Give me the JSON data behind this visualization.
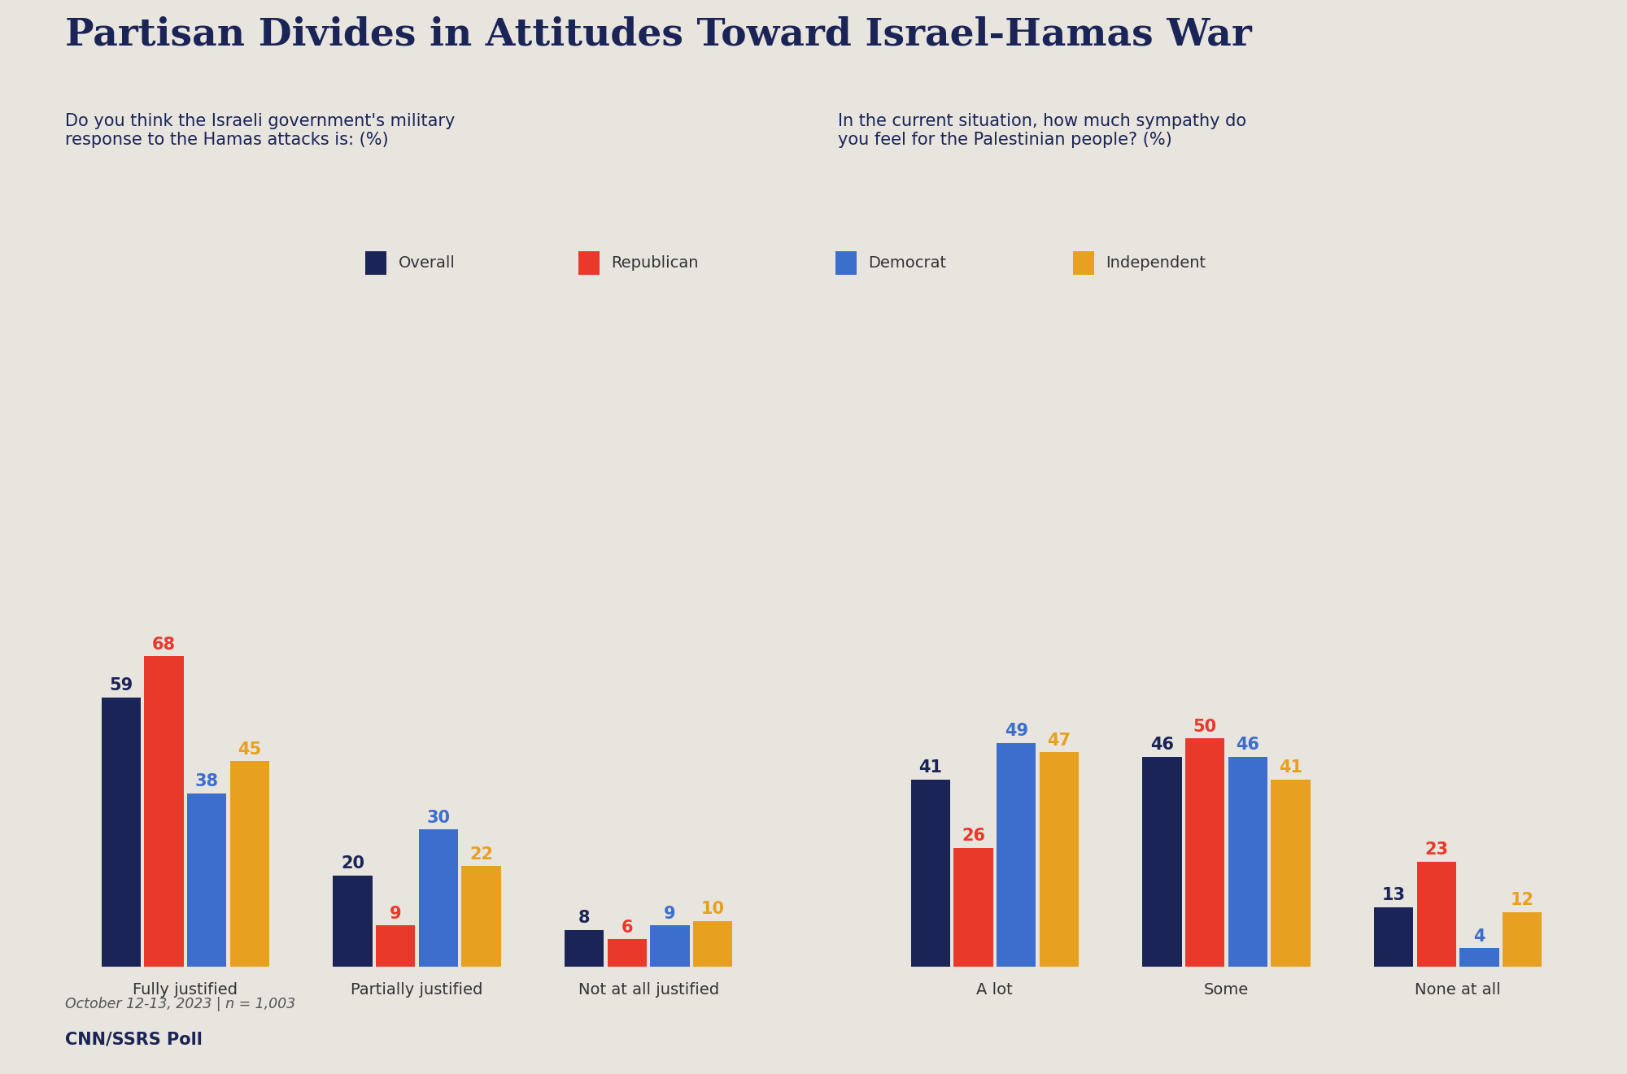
{
  "title": "Partisan Divides in Attitudes Toward Israel-Hamas War",
  "subtitle_left": "Do you think the Israeli government's military\nresponse to the Hamas attacks is: (%)",
  "subtitle_right": "In the current situation, how much sympathy do\nyou feel for the Palestinian people? (%)",
  "footnote": "October 12-13, 2023 | n = 1,003",
  "source": "CNN/SSRS Poll",
  "background_color": "#e8e4de",
  "title_color": "#1a2456",
  "subtitle_color": "#1a2456",
  "text_color": "#333333",
  "legend_labels": [
    "Overall",
    "Republican",
    "Democrat",
    "Independent"
  ],
  "bar_colors": [
    "#1a2456",
    "#e8392a",
    "#3c6fcd",
    "#e8a020"
  ],
  "left_categories": [
    "Fully justified",
    "Partially justified",
    "Not at all justified"
  ],
  "right_categories": [
    "A lot",
    "Some",
    "None at all"
  ],
  "left_data": {
    "Overall": [
      59,
      20,
      8
    ],
    "Republican": [
      68,
      9,
      6
    ],
    "Democrat": [
      38,
      30,
      9
    ],
    "Independent": [
      45,
      22,
      10
    ]
  },
  "right_data": {
    "Overall": [
      41,
      46,
      13
    ],
    "Republican": [
      26,
      50,
      23
    ],
    "Democrat": [
      49,
      46,
      4
    ],
    "Independent": [
      47,
      41,
      12
    ]
  },
  "label_colors": {
    "Overall": "#1a2456",
    "Republican": "#e8392a",
    "Democrat": "#3c6fcd",
    "Independent": "#e8a020"
  },
  "ylim_max": 80
}
